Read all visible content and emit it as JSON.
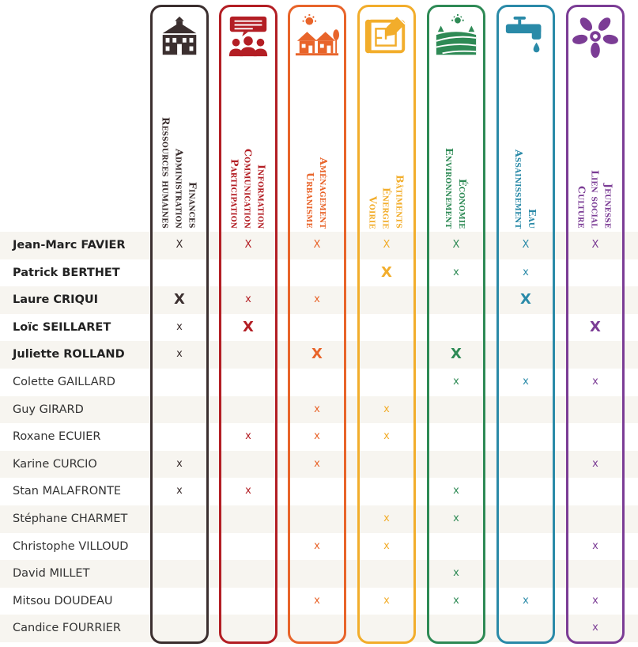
{
  "columns": [
    {
      "id": "finances",
      "color": "#3b2f2f",
      "lines": [
        "Finances",
        "Administration",
        "Ressources humaines"
      ],
      "icon": "town-hall-icon"
    },
    {
      "id": "information",
      "color": "#b31e24",
      "lines": [
        "Information",
        "Communication",
        "Participation"
      ],
      "icon": "community-speech-icon"
    },
    {
      "id": "amenagement",
      "color": "#e8642a",
      "lines": [
        "Aménagement",
        "Urbanisme"
      ],
      "icon": "houses-sun-icon"
    },
    {
      "id": "batiments",
      "color": "#f2ad2b",
      "lines": [
        "Bâtiments",
        "Énergie",
        "Voirie"
      ],
      "icon": "blueprint-icon"
    },
    {
      "id": "economie",
      "color": "#2e8a55",
      "lines": [
        "Économie",
        "Environnement"
      ],
      "icon": "fields-sun-icon"
    },
    {
      "id": "eau",
      "color": "#2a8aa8",
      "lines": [
        "Eau",
        "Assainissement"
      ],
      "icon": "water-tap-icon"
    },
    {
      "id": "jeunesse",
      "color": "#7b3c95",
      "lines": [
        "Jeunesse",
        "Lien social",
        "Culture"
      ],
      "icon": "joined-hands-icon"
    }
  ],
  "rows": [
    {
      "name": "Jean-Marc FAVIER",
      "bold": true,
      "marks": [
        "X",
        "X",
        "X",
        "X",
        "X",
        "X",
        "X"
      ],
      "big": [
        false,
        false,
        false,
        false,
        false,
        false,
        false
      ]
    },
    {
      "name": "Patrick BERTHET",
      "bold": true,
      "marks": [
        "",
        "",
        "",
        "X",
        "x",
        "x",
        ""
      ],
      "big": [
        false,
        false,
        false,
        true,
        false,
        false,
        false
      ]
    },
    {
      "name": "Laure CRIQUI",
      "bold": true,
      "marks": [
        "X",
        "x",
        "x",
        "",
        "",
        "X",
        ""
      ],
      "big": [
        true,
        false,
        false,
        false,
        false,
        true,
        false
      ]
    },
    {
      "name": "Loïc SEILLARET",
      "bold": true,
      "marks": [
        "x",
        "X",
        "",
        "",
        "",
        "",
        "X"
      ],
      "big": [
        false,
        true,
        false,
        false,
        false,
        false,
        true
      ]
    },
    {
      "name": "Juliette ROLLAND",
      "bold": true,
      "marks": [
        "x",
        "",
        "X",
        "",
        "X",
        "",
        ""
      ],
      "big": [
        false,
        false,
        true,
        false,
        true,
        false,
        false
      ]
    },
    {
      "name": "Colette GAILLARD",
      "bold": false,
      "marks": [
        "",
        "",
        "",
        "",
        "x",
        "x",
        "x"
      ],
      "big": [
        false,
        false,
        false,
        false,
        false,
        false,
        false
      ]
    },
    {
      "name": "Guy GIRARD",
      "bold": false,
      "marks": [
        "",
        "",
        "x",
        "x",
        "",
        "",
        ""
      ],
      "big": [
        false,
        false,
        false,
        false,
        false,
        false,
        false
      ]
    },
    {
      "name": "Roxane ECUIER",
      "bold": false,
      "marks": [
        "",
        "x",
        "x",
        "x",
        "",
        "",
        ""
      ],
      "big": [
        false,
        false,
        false,
        false,
        false,
        false,
        false
      ]
    },
    {
      "name": "Karine CURCIO",
      "bold": false,
      "marks": [
        "x",
        "",
        "x",
        "",
        "",
        "",
        "x"
      ],
      "big": [
        false,
        false,
        false,
        false,
        false,
        false,
        false
      ]
    },
    {
      "name": "Stan MALAFRONTE",
      "bold": false,
      "marks": [
        "x",
        "x",
        "",
        "",
        "x",
        "",
        ""
      ],
      "big": [
        false,
        false,
        false,
        false,
        false,
        false,
        false
      ]
    },
    {
      "name": "Stéphane CHARMET",
      "bold": false,
      "marks": [
        "",
        "",
        "",
        "x",
        "x",
        "",
        ""
      ],
      "big": [
        false,
        false,
        false,
        false,
        false,
        false,
        false
      ]
    },
    {
      "name": "Christophe VILLOUD",
      "bold": false,
      "marks": [
        "",
        "",
        "x",
        "x",
        "",
        "",
        "x"
      ],
      "big": [
        false,
        false,
        false,
        false,
        false,
        false,
        false
      ]
    },
    {
      "name": "David MILLET",
      "bold": false,
      "marks": [
        "",
        "",
        "",
        "",
        "x",
        "",
        ""
      ],
      "big": [
        false,
        false,
        false,
        false,
        false,
        false,
        false
      ]
    },
    {
      "name": "Mitsou DOUDEAU",
      "bold": false,
      "marks": [
        "",
        "",
        "x",
        "x",
        "x",
        "x",
        "x"
      ],
      "big": [
        false,
        false,
        false,
        false,
        false,
        false,
        false
      ]
    },
    {
      "name": "Candice FOURRIER",
      "bold": false,
      "marks": [
        "",
        "",
        "",
        "",
        "",
        "",
        "x"
      ],
      "big": [
        false,
        false,
        false,
        false,
        false,
        false,
        false
      ]
    }
  ]
}
